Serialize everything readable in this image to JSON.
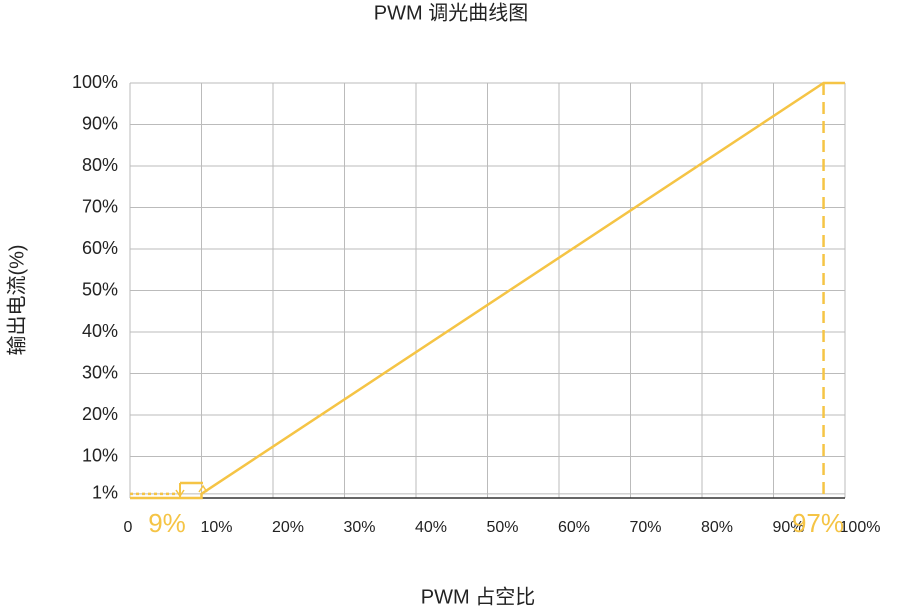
{
  "chart_data": {
    "type": "line",
    "title": "PWM 调光曲线图",
    "x_label": "PWM 占空比",
    "y_label": "输出电流(%)",
    "xlim": [
      0,
      100
    ],
    "ylim": [
      0,
      100
    ],
    "xticks": [
      0,
      {
        "value": 10,
        "label": "10%"
      },
      {
        "value": 20,
        "label": "20%"
      },
      {
        "value": 30,
        "label": "30%"
      },
      {
        "value": 40,
        "label": "40%"
      },
      {
        "value": 50,
        "label": "50%"
      },
      {
        "value": 60,
        "label": "60%"
      },
      {
        "value": 70,
        "label": "70%"
      },
      {
        "value": 80,
        "label": "80%"
      },
      {
        "value": 90,
        "label": "90%"
      },
      {
        "value": 100,
        "label": "100%"
      }
    ],
    "yticks": [
      {
        "value": 1,
        "label": "1%"
      },
      {
        "value": 10,
        "label": "10%"
      },
      {
        "value": 20,
        "label": "20%"
      },
      {
        "value": 30,
        "label": "30%"
      },
      {
        "value": 40,
        "label": "40%"
      },
      {
        "value": 50,
        "label": "50%"
      },
      {
        "value": 60,
        "label": "60%"
      },
      {
        "value": 70,
        "label": "70%"
      },
      {
        "value": 80,
        "label": "80%"
      },
      {
        "value": 90,
        "label": "90%"
      },
      {
        "value": 100,
        "label": "100%"
      }
    ],
    "grid": true,
    "series": [
      {
        "color": "#f5c445",
        "style": "solid",
        "x": [
          0,
          10,
          10,
          97,
          100
        ],
        "values": [
          0,
          0,
          1,
          100,
          100
        ]
      },
      {
        "color": "#f5c445",
        "style": "dotted",
        "x": [
          0,
          7
        ],
        "values": [
          1,
          1
        ]
      }
    ],
    "reference_line": {
      "x": 97,
      "color": "#f5c445",
      "style": "dashed"
    },
    "annotations": [
      "9%",
      "97%"
    ]
  }
}
